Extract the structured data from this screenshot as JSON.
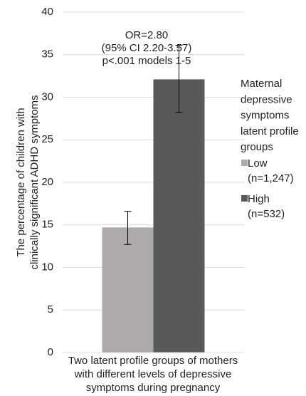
{
  "chart_data": {
    "type": "bar",
    "y_label": [
      "The percentage of children with",
      "clinically significant ADHD symptoms"
    ],
    "categories": [
      "Two latent profile groups of mothers with different levels of depressive symptoms during pregnancy"
    ],
    "series": [
      {
        "name": "Low (n=1,247)",
        "color": "#aeaaaa",
        "values": [
          14.7
        ],
        "error_low": [
          12.7
        ],
        "error_high": [
          16.6
        ]
      },
      {
        "name": "High (n=532)",
        "color": "#595959",
        "values": [
          32.1
        ],
        "error_low": [
          28.2
        ],
        "error_high": [
          36.1
        ]
      }
    ],
    "annotation": [
      "OR=2.80",
      "(95% CI 2.20-3.57)",
      "p<.001 models 1-5"
    ],
    "legend_title": [
      "Maternal",
      "depressive",
      "symptoms",
      "latent profile",
      "groups"
    ],
    "ylim": [
      0,
      40
    ],
    "yticks": [
      0,
      5,
      10,
      15,
      20,
      25,
      30,
      35,
      40
    ],
    "grid": true,
    "legend": "right"
  }
}
